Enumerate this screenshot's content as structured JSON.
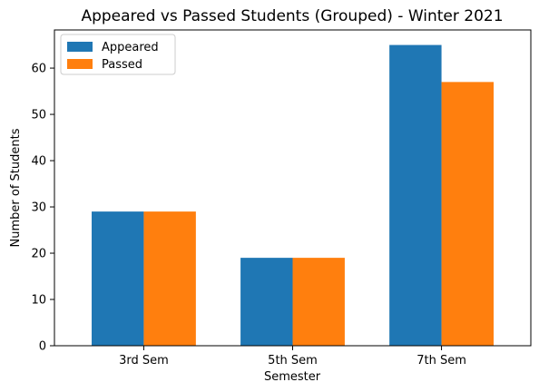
{
  "chart_data": {
    "type": "bar",
    "title": "Appeared vs Passed Students (Grouped) - Winter 2021",
    "xlabel": "Semester",
    "ylabel": "Number of Students",
    "categories": [
      "3rd Sem",
      "5th Sem",
      "7th Sem"
    ],
    "series": [
      {
        "name": "Appeared",
        "values": [
          29,
          19,
          65
        ],
        "color": "#1f77b4"
      },
      {
        "name": "Passed",
        "values": [
          29,
          19,
          57
        ],
        "color": "#ff7f0e"
      }
    ],
    "ylim": [
      0,
      68.25
    ],
    "yticks": [
      "0",
      "10",
      "20",
      "30",
      "40",
      "50",
      "60"
    ],
    "grid": false,
    "legend_position": "top-left"
  }
}
